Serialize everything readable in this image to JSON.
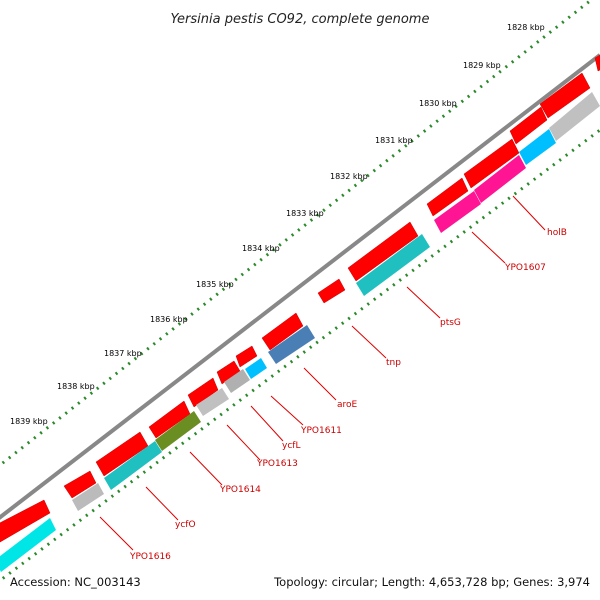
{
  "title": "Yersinia pestis CO92, complete genome",
  "accession": "Accession: NC_003143",
  "summary": "Topology: circular; Length: 4,653,728 bp; Genes: 3,974",
  "colors": {
    "forward_cds": "#ff0000",
    "backbone": "#808080",
    "ticks": "#2a8a2a",
    "label": "#cc0000"
  },
  "scale_labels": [
    "1828 kbp",
    "1829 kbp",
    "1830 kbp",
    "1831 kbp",
    "1832 kbp",
    "1833 kbp",
    "1834 kbp",
    "1835 kbp",
    "1836 kbp",
    "1837 kbp",
    "1838 kbp",
    "1839 kbp"
  ],
  "gene_labels": [
    "holB",
    "YPO1607",
    "ptsG",
    "tnp",
    "aroE",
    "YPO1611",
    "ycfL",
    "YPO1613",
    "YPO1614",
    "ycfO",
    "YPO1616"
  ]
}
